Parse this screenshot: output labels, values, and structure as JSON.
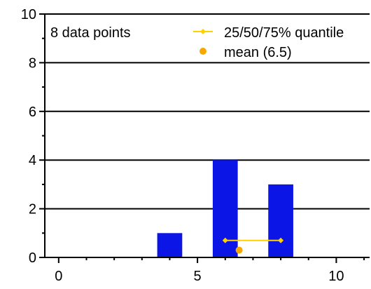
{
  "chart_data": {
    "type": "bar",
    "title": "",
    "xlabel": "",
    "ylabel": "",
    "xlim": [
      -0.5,
      11.2
    ],
    "ylim": [
      0,
      10
    ],
    "grid": "horizontal",
    "x_ticks": [
      0,
      5,
      10
    ],
    "y_ticks": [
      0,
      2,
      4,
      6,
      8,
      10
    ],
    "x_minor_step": 1,
    "y_minor_step": 1,
    "bar_width": 0.9,
    "bars": [
      {
        "x": 4,
        "value": 1
      },
      {
        "x": 6,
        "value": 4
      },
      {
        "x": 8,
        "value": 3
      }
    ],
    "quantiles": {
      "x": [
        6,
        8
      ],
      "y": 0.7
    },
    "mean": {
      "x": 6.5,
      "y": 0.3
    },
    "annotation": "8 data points",
    "legend": {
      "position": "top-right",
      "entries": [
        {
          "label": "25/50/75% quantile",
          "marker": "line-diamond"
        },
        {
          "label": "mean (6.5)",
          "marker": "dot"
        }
      ]
    },
    "colors": {
      "bar": "#0b15e6",
      "quantile": "#ffd100",
      "mean": "#f5a800"
    }
  }
}
